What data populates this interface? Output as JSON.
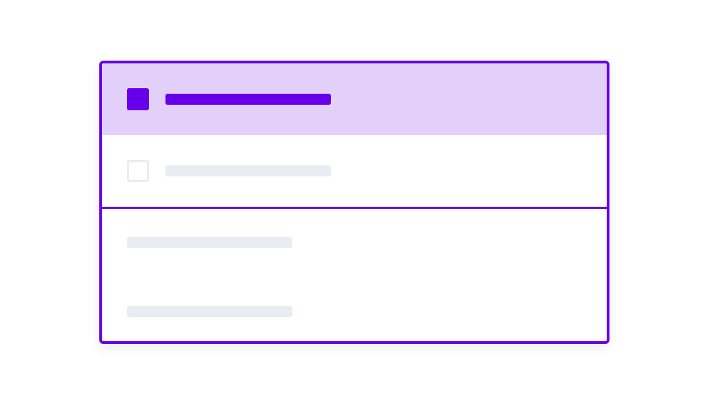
{
  "colors": {
    "accent": "#6600EA",
    "selected_row_bg": "#E3D0FA",
    "placeholder": "#E9ECF0"
  },
  "options": [
    {
      "selected": true,
      "checkbox_icon": "checkbox-checked"
    },
    {
      "selected": false,
      "checkbox_icon": "checkbox-empty"
    }
  ],
  "content_placeholder_lines": 2
}
